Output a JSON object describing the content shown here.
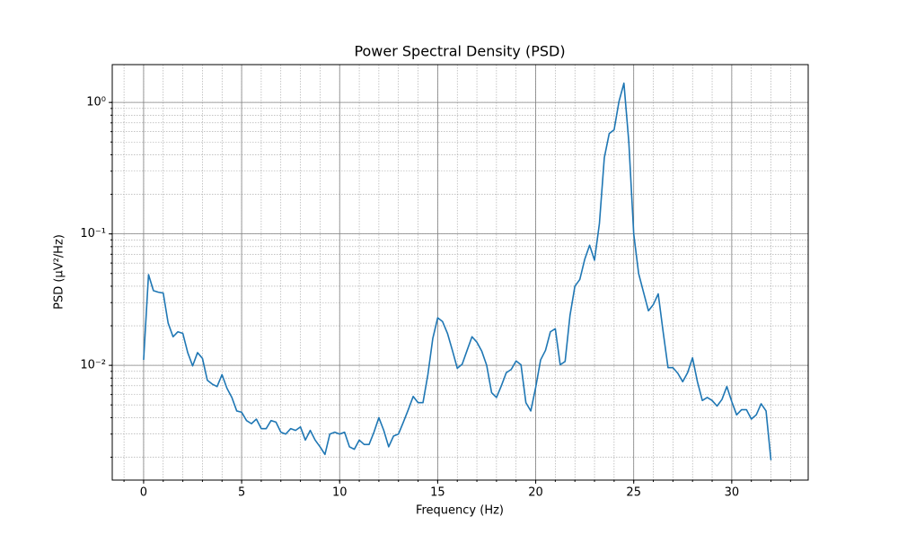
{
  "chart_data": {
    "type": "line",
    "title": "Power Spectral Density (PSD)",
    "x_label": "Frequency (Hz)",
    "y_label": "PSD (μV²/Hz)",
    "log_y": true,
    "grid": true,
    "minor_grid": true,
    "xlim": [
      -1.6,
      33.9
    ],
    "xticks": [
      0,
      5,
      10,
      15,
      20,
      25,
      30
    ],
    "ylim": [
      0.00134,
      1.94
    ],
    "yticks": [
      {
        "value": 0.01,
        "label": "10⁻²"
      },
      {
        "value": 0.1,
        "label": "10⁻¹"
      },
      {
        "value": 1,
        "label": "10⁰"
      }
    ],
    "x": [
      0,
      0.25,
      0.5,
      0.75,
      1,
      1.25,
      1.5,
      1.75,
      2,
      2.25,
      2.5,
      2.75,
      3,
      3.25,
      3.5,
      3.75,
      4,
      4.25,
      4.5,
      4.75,
      5,
      5.25,
      5.5,
      5.75,
      6,
      6.25,
      6.5,
      6.75,
      7,
      7.25,
      7.5,
      7.75,
      8,
      8.25,
      8.5,
      8.75,
      9,
      9.25,
      9.5,
      9.75,
      10,
      10.25,
      10.5,
      10.75,
      11,
      11.25,
      11.5,
      11.75,
      12,
      12.25,
      12.5,
      12.75,
      13,
      13.25,
      13.5,
      13.75,
      14,
      14.25,
      14.5,
      14.75,
      15,
      15.25,
      15.5,
      15.75,
      16,
      16.25,
      16.5,
      16.75,
      17,
      17.25,
      17.5,
      17.75,
      18,
      18.25,
      18.5,
      18.75,
      19,
      19.25,
      19.5,
      19.75,
      20,
      20.25,
      20.5,
      20.75,
      21,
      21.25,
      21.5,
      21.75,
      22,
      22.25,
      22.5,
      22.75,
      23,
      23.25,
      23.5,
      23.75,
      24,
      24.25,
      24.5,
      24.75,
      25,
      25.25,
      25.5,
      25.75,
      26,
      26.25,
      26.5,
      26.75,
      27,
      27.25,
      27.5,
      27.75,
      28,
      28.25,
      28.5,
      28.75,
      29,
      29.25,
      29.5,
      29.75,
      30,
      30.25,
      30.5,
      30.75,
      31,
      31.25,
      31.5,
      31.75,
      32
    ],
    "series": [
      {
        "color": "#1f77b4",
        "values": [
          0.011,
          0.049,
          0.037,
          0.036,
          0.0355,
          0.021,
          0.0165,
          0.018,
          0.0175,
          0.0125,
          0.0099,
          0.0125,
          0.0113,
          0.0077,
          0.0072,
          0.0069,
          0.0085,
          0.0067,
          0.0057,
          0.0045,
          0.0044,
          0.0038,
          0.0036,
          0.0039,
          0.0033,
          0.0033,
          0.0038,
          0.0037,
          0.0031,
          0.003,
          0.0033,
          0.0032,
          0.0034,
          0.0027,
          0.0032,
          0.0027,
          0.0024,
          0.0021,
          0.003,
          0.0031,
          0.003,
          0.0031,
          0.0024,
          0.0023,
          0.0027,
          0.0025,
          0.0025,
          0.0031,
          0.004,
          0.0032,
          0.0024,
          0.0029,
          0.003,
          0.0037,
          0.0046,
          0.0058,
          0.0052,
          0.0052,
          0.0085,
          0.016,
          0.023,
          0.0215,
          0.0175,
          0.013,
          0.0095,
          0.0102,
          0.013,
          0.0165,
          0.015,
          0.0128,
          0.01,
          0.0062,
          0.0057,
          0.007,
          0.0088,
          0.0093,
          0.0108,
          0.0101,
          0.0052,
          0.0045,
          0.0068,
          0.011,
          0.013,
          0.018,
          0.019,
          0.0101,
          0.0107,
          0.024,
          0.04,
          0.045,
          0.064,
          0.082,
          0.063,
          0.12,
          0.38,
          0.58,
          0.62,
          1.02,
          1.4,
          0.5,
          0.1,
          0.05,
          0.036,
          0.026,
          0.029,
          0.035,
          0.018,
          0.0096,
          0.0096,
          0.0087,
          0.0075,
          0.0088,
          0.0114,
          0.0075,
          0.0054,
          0.0057,
          0.0054,
          0.0049,
          0.0055,
          0.0069,
          0.0053,
          0.0042,
          0.0046,
          0.0046,
          0.0039,
          0.0042,
          0.0051,
          0.0045,
          0.0019
        ]
      }
    ]
  }
}
